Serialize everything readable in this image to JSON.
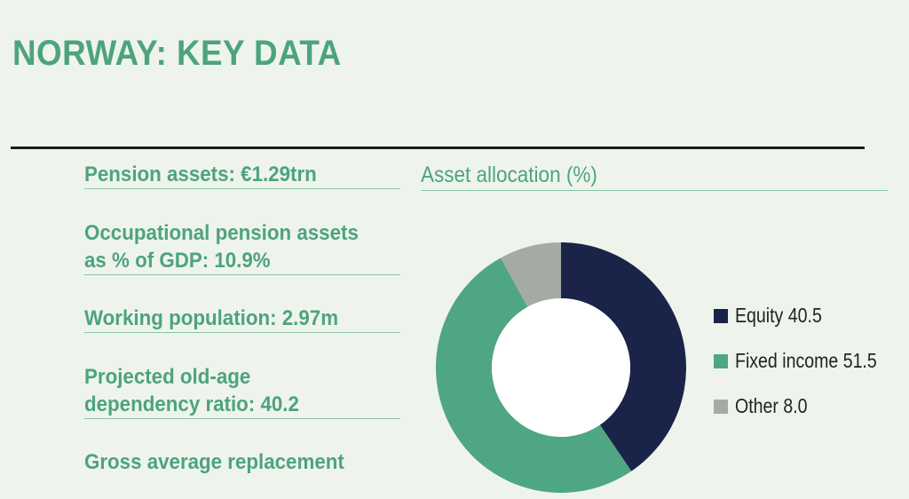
{
  "title": "NORWAY: KEY DATA",
  "stats": [
    {
      "lines": [
        "Pension assets: €1.29trn"
      ]
    },
    {
      "lines": [
        "Occupational pension assets",
        "as % of GDP: 10.9%"
      ]
    },
    {
      "lines": [
        "Working population: 2.97m"
      ]
    },
    {
      "lines": [
        "Projected old-age",
        "dependency ratio: 40.2"
      ]
    },
    {
      "lines": [
        "Gross average replacement"
      ]
    }
  ],
  "chart_data": {
    "type": "pie",
    "title": "Asset allocation (%)",
    "categories": [
      "Equity",
      "Fixed income",
      "Other"
    ],
    "values": [
      40.5,
      51.5,
      8.0
    ],
    "legend_labels": [
      "Equity 40.5",
      "Fixed income 51.5",
      "Other 8.0"
    ],
    "colors": [
      "#192448",
      "#4fa683",
      "#a5aba3"
    ],
    "donut": true,
    "legend_position": "right"
  }
}
